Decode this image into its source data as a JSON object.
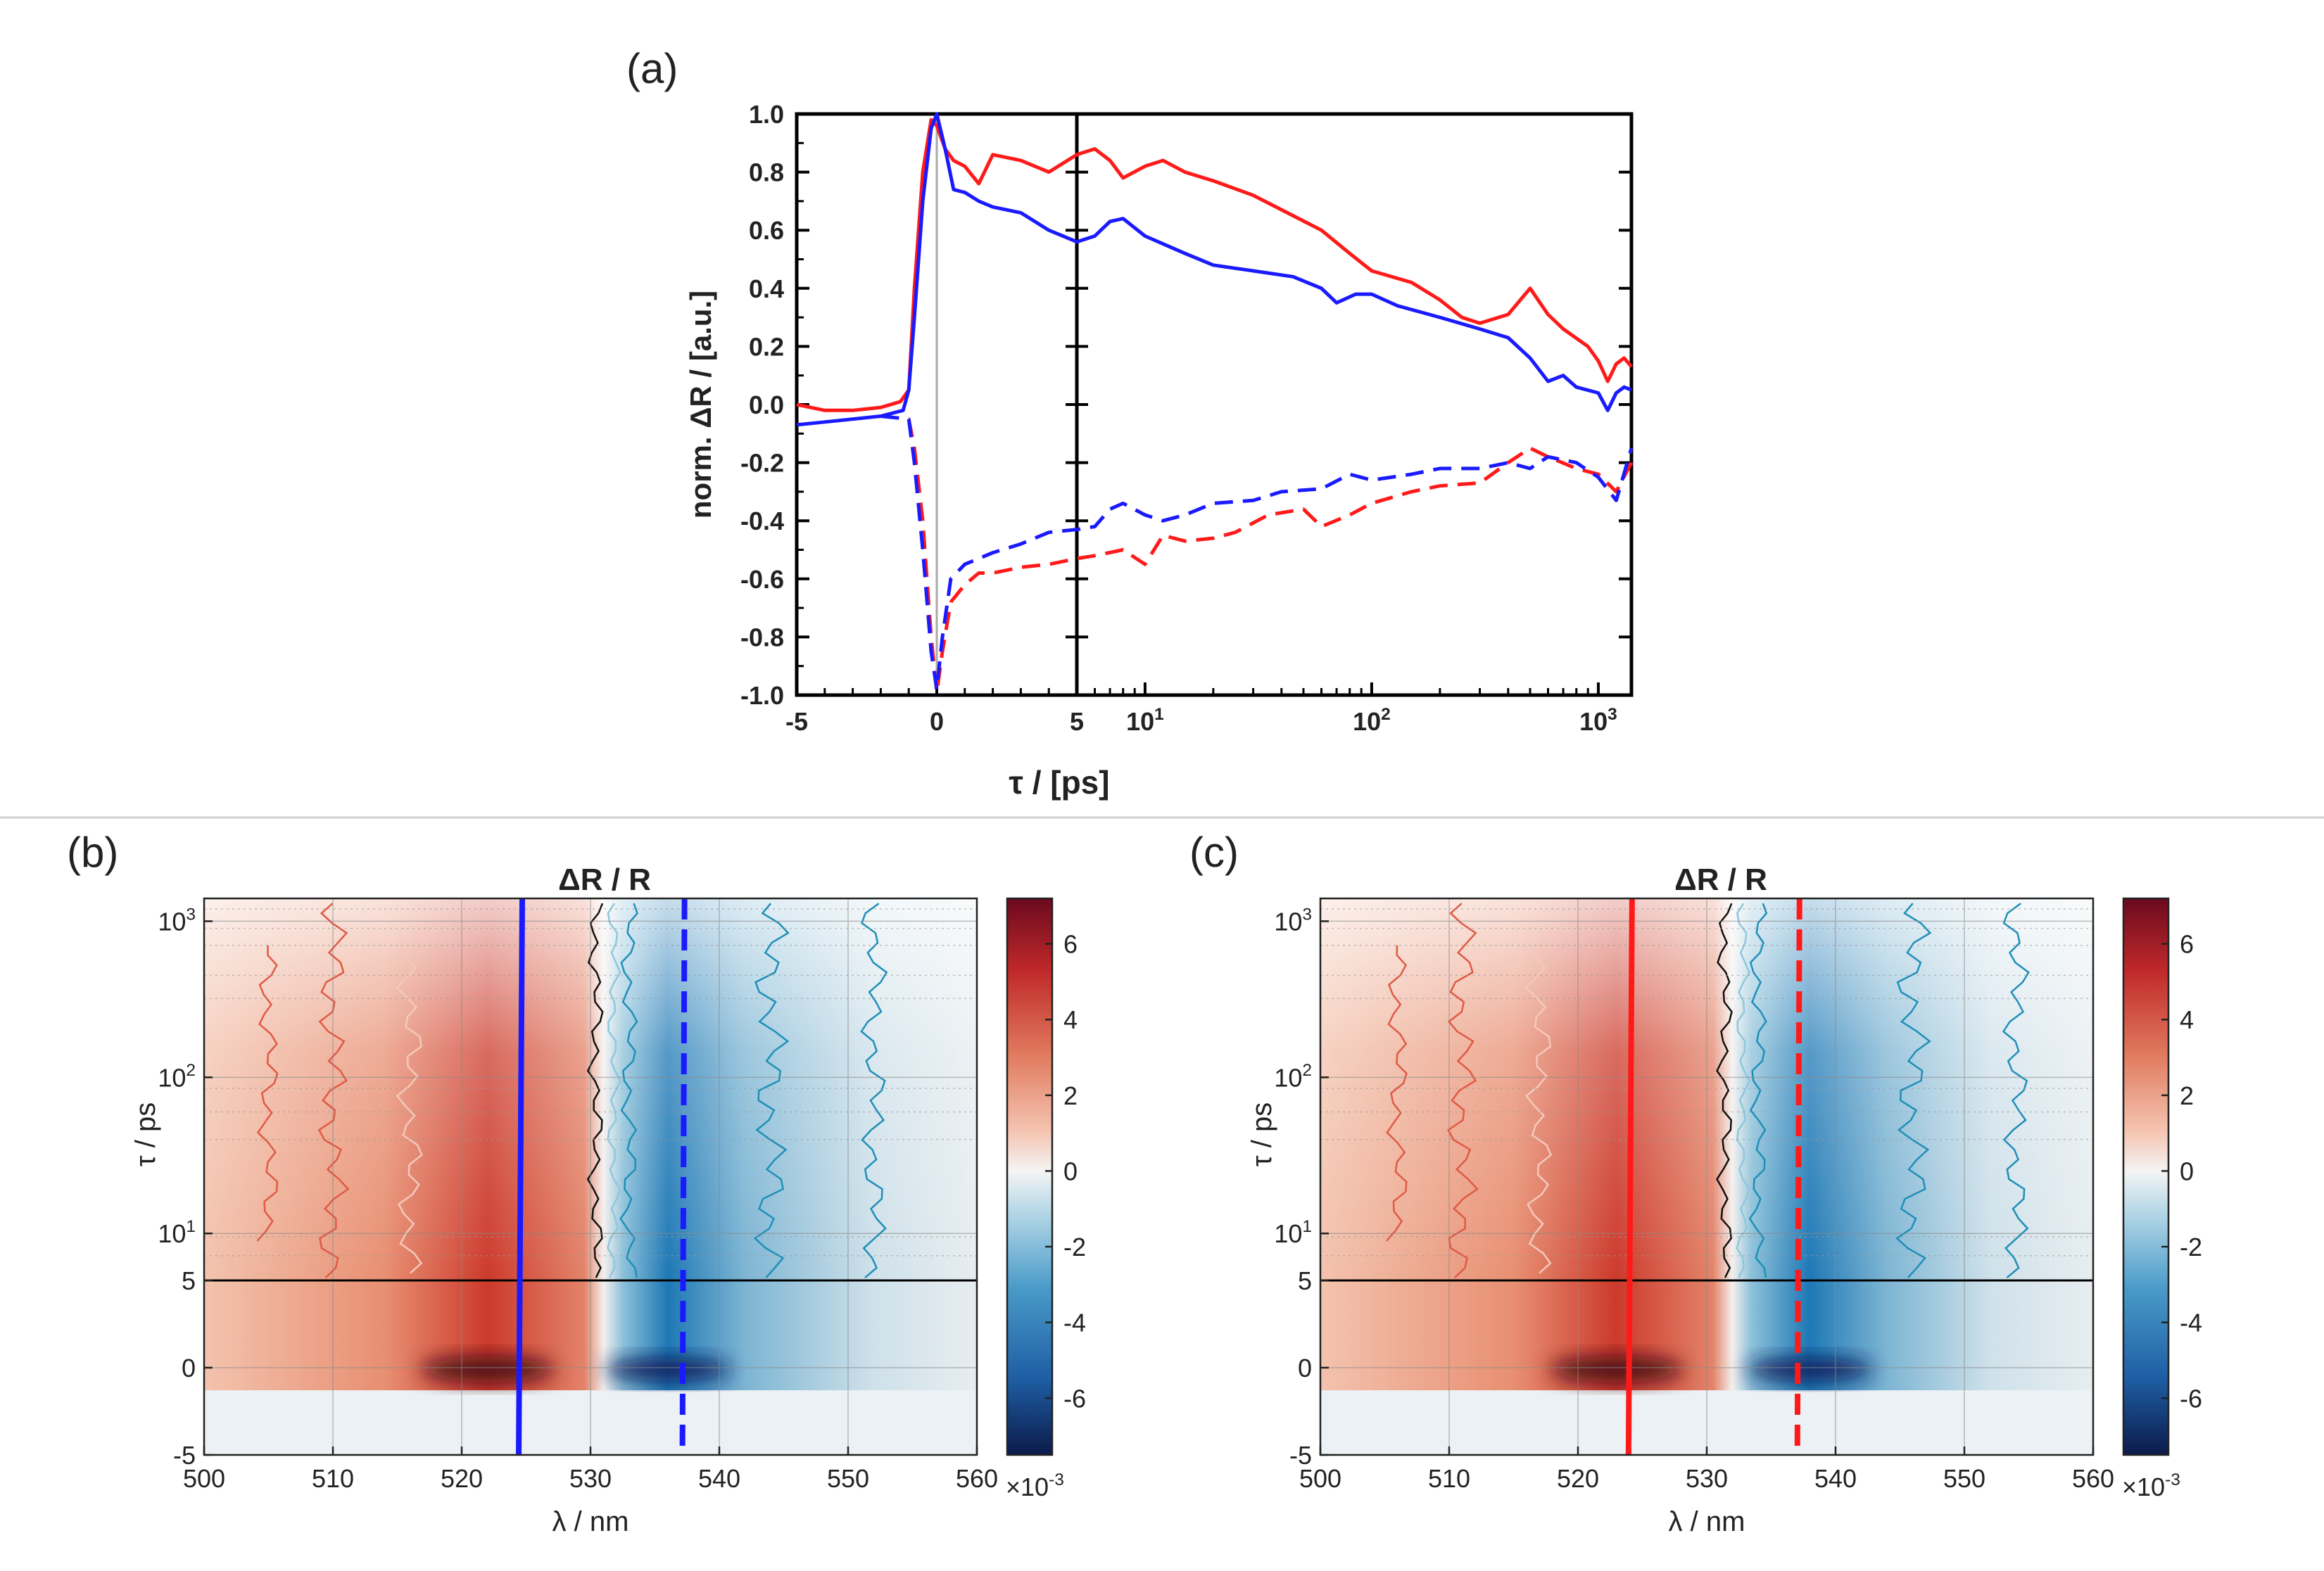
{
  "panel_labels": {
    "a": "(a)",
    "b": "(b)",
    "c": "(c)"
  },
  "colors": {
    "red": "#ff1a1a",
    "blue": "#1a1aff",
    "pos": "#b2182b",
    "neg": "#2166ac",
    "zero": "#f2f2f2"
  },
  "chart_data": [
    {
      "type": "line",
      "panel": "(a)",
      "ylabel": "norm. ΔR / [a.u.]",
      "xlabel": "τ / [ps]",
      "ylim": [
        -1.0,
        1.0
      ],
      "yticks": [
        "1.0",
        "0.8",
        "0.6",
        "0.4",
        "0.2",
        "0.0",
        "-0.2",
        "-0.4",
        "-0.6",
        "-0.8",
        "-1.0"
      ],
      "x_linear_range": [
        -5,
        5
      ],
      "x_log_range": [
        5,
        1400
      ],
      "xticks_linear": [
        "-5",
        "0",
        "5"
      ],
      "xticks_log": [
        {
          "base": "10",
          "exp": "1"
        },
        {
          "base": "10",
          "exp": "2"
        },
        {
          "base": "10",
          "exp": "3"
        }
      ],
      "series": [
        {
          "name": "red solid",
          "color": "red",
          "dash": false,
          "points": [
            [
              -5,
              0.0
            ],
            [
              -4,
              -0.02
            ],
            [
              -3,
              -0.02
            ],
            [
              -2,
              -0.01
            ],
            [
              -1.3,
              0.01
            ],
            [
              -1,
              0.05
            ],
            [
              -0.8,
              0.4
            ],
            [
              -0.5,
              0.8
            ],
            [
              -0.2,
              0.98
            ],
            [
              0,
              0.96
            ],
            [
              0.3,
              0.88
            ],
            [
              0.6,
              0.84
            ],
            [
              1,
              0.82
            ],
            [
              1.5,
              0.76
            ],
            [
              2,
              0.86
            ],
            [
              3,
              0.84
            ],
            [
              4,
              0.8
            ],
            [
              5,
              0.86
            ],
            [
              6,
              0.88
            ],
            [
              7,
              0.84
            ],
            [
              8,
              0.78
            ],
            [
              10,
              0.82
            ],
            [
              12,
              0.84
            ],
            [
              15,
              0.8
            ],
            [
              20,
              0.77
            ],
            [
              30,
              0.72
            ],
            [
              45,
              0.65
            ],
            [
              60,
              0.6
            ],
            [
              80,
              0.52
            ],
            [
              100,
              0.46
            ],
            [
              150,
              0.42
            ],
            [
              200,
              0.36
            ],
            [
              250,
              0.3
            ],
            [
              300,
              0.28
            ],
            [
              400,
              0.31
            ],
            [
              500,
              0.4
            ],
            [
              600,
              0.31
            ],
            [
              700,
              0.26
            ],
            [
              900,
              0.2
            ],
            [
              1000,
              0.15
            ],
            [
              1100,
              0.08
            ],
            [
              1200,
              0.14
            ],
            [
              1300,
              0.16
            ],
            [
              1400,
              0.13
            ]
          ]
        },
        {
          "name": "blue solid",
          "color": "blue",
          "dash": false,
          "points": [
            [
              -5,
              -0.07
            ],
            [
              -4,
              -0.06
            ],
            [
              -3,
              -0.05
            ],
            [
              -2,
              -0.04
            ],
            [
              -1.2,
              -0.02
            ],
            [
              -1,
              0.05
            ],
            [
              -0.8,
              0.3
            ],
            [
              -0.5,
              0.7
            ],
            [
              -0.2,
              0.95
            ],
            [
              0,
              1.0
            ],
            [
              0.3,
              0.88
            ],
            [
              0.6,
              0.74
            ],
            [
              1,
              0.73
            ],
            [
              1.5,
              0.7
            ],
            [
              2,
              0.68
            ],
            [
              3,
              0.66
            ],
            [
              4,
              0.6
            ],
            [
              5,
              0.56
            ],
            [
              6,
              0.58
            ],
            [
              7,
              0.63
            ],
            [
              8,
              0.64
            ],
            [
              10,
              0.58
            ],
            [
              15,
              0.52
            ],
            [
              20,
              0.48
            ],
            [
              30,
              0.46
            ],
            [
              45,
              0.44
            ],
            [
              60,
              0.4
            ],
            [
              70,
              0.35
            ],
            [
              85,
              0.38
            ],
            [
              100,
              0.38
            ],
            [
              130,
              0.34
            ],
            [
              200,
              0.3
            ],
            [
              300,
              0.26
            ],
            [
              400,
              0.23
            ],
            [
              500,
              0.16
            ],
            [
              600,
              0.08
            ],
            [
              700,
              0.1
            ],
            [
              800,
              0.06
            ],
            [
              1000,
              0.04
            ],
            [
              1100,
              -0.02
            ],
            [
              1200,
              0.04
            ],
            [
              1300,
              0.06
            ],
            [
              1400,
              0.05
            ]
          ]
        },
        {
          "name": "red dashed",
          "color": "red",
          "dash": true,
          "points": [
            [
              -1,
              -0.05
            ],
            [
              -0.8,
              -0.15
            ],
            [
              -0.5,
              -0.4
            ],
            [
              -0.2,
              -0.8
            ],
            [
              0,
              -0.99
            ],
            [
              0.2,
              -0.85
            ],
            [
              0.5,
              -0.68
            ],
            [
              1,
              -0.62
            ],
            [
              1.5,
              -0.58
            ],
            [
              2,
              -0.58
            ],
            [
              3,
              -0.56
            ],
            [
              4,
              -0.55
            ],
            [
              5,
              -0.53
            ],
            [
              6,
              -0.52
            ],
            [
              8,
              -0.5
            ],
            [
              10,
              -0.55
            ],
            [
              12,
              -0.45
            ],
            [
              15,
              -0.47
            ],
            [
              20,
              -0.46
            ],
            [
              25,
              -0.44
            ],
            [
              35,
              -0.38
            ],
            [
              50,
              -0.36
            ],
            [
              60,
              -0.42
            ],
            [
              80,
              -0.38
            ],
            [
              100,
              -0.34
            ],
            [
              150,
              -0.3
            ],
            [
              200,
              -0.28
            ],
            [
              300,
              -0.27
            ],
            [
              400,
              -0.2
            ],
            [
              500,
              -0.15
            ],
            [
              600,
              -0.18
            ],
            [
              800,
              -0.22
            ],
            [
              1000,
              -0.24
            ],
            [
              1200,
              -0.3
            ],
            [
              1400,
              -0.2
            ]
          ]
        },
        {
          "name": "blue dashed",
          "color": "blue",
          "dash": true,
          "points": [
            [
              -2,
              -0.04
            ],
            [
              -1,
              -0.05
            ],
            [
              -0.8,
              -0.2
            ],
            [
              -0.5,
              -0.5
            ],
            [
              -0.2,
              -0.85
            ],
            [
              0,
              -0.98
            ],
            [
              0.2,
              -0.8
            ],
            [
              0.5,
              -0.6
            ],
            [
              1,
              -0.55
            ],
            [
              2,
              -0.51
            ],
            [
              3,
              -0.48
            ],
            [
              4,
              -0.44
            ],
            [
              5,
              -0.43
            ],
            [
              6,
              -0.42
            ],
            [
              7,
              -0.36
            ],
            [
              8,
              -0.34
            ],
            [
              10,
              -0.38
            ],
            [
              12,
              -0.4
            ],
            [
              15,
              -0.38
            ],
            [
              20,
              -0.34
            ],
            [
              30,
              -0.33
            ],
            [
              40,
              -0.3
            ],
            [
              60,
              -0.29
            ],
            [
              80,
              -0.24
            ],
            [
              100,
              -0.26
            ],
            [
              150,
              -0.24
            ],
            [
              200,
              -0.22
            ],
            [
              300,
              -0.22
            ],
            [
              400,
              -0.2
            ],
            [
              500,
              -0.22
            ],
            [
              600,
              -0.18
            ],
            [
              800,
              -0.2
            ],
            [
              1000,
              -0.25
            ],
            [
              1200,
              -0.33
            ],
            [
              1400,
              -0.15
            ]
          ]
        }
      ]
    },
    {
      "type": "heatmap",
      "panel": "(b)",
      "title": "ΔR / R",
      "xlabel": "λ / nm",
      "ylabel": "τ / ps",
      "xlim": [
        500,
        560
      ],
      "xticks": [
        "500",
        "510",
        "520",
        "530",
        "540",
        "550",
        "560"
      ],
      "ylim_linear": [
        -5,
        5
      ],
      "ylim_log": [
        5,
        1400
      ],
      "yticks_linear": [
        "5",
        "0",
        "-5"
      ],
      "yticks_log": [
        {
          "base": "10",
          "exp": "3"
        },
        {
          "base": "10",
          "exp": "2"
        },
        {
          "base": "10",
          "exp": "1"
        }
      ],
      "colorbar_ticks": [
        "6",
        "4",
        "2",
        "0",
        "-2",
        "-4",
        "-6"
      ],
      "colorbar_range": [
        -7.5,
        7.2
      ],
      "colorbar_scale": "×10",
      "colorbar_scale_exp": "-3",
      "zero_crossing_nm": 531,
      "positive_peak_nm": 522,
      "negative_peak_nm": 536,
      "marker_solid_nm": 524.7,
      "marker_dashed_nm": 537.3,
      "marker_color": "blue"
    },
    {
      "type": "heatmap",
      "panel": "(c)",
      "title": "ΔR / R",
      "xlabel": "λ / nm",
      "ylabel": "τ / ps",
      "xlim": [
        500,
        560
      ],
      "xticks": [
        "500",
        "510",
        "520",
        "530",
        "540",
        "550",
        "560"
      ],
      "ylim_linear": [
        -5,
        5
      ],
      "ylim_log": [
        5,
        1400
      ],
      "yticks_linear": [
        "5",
        "0",
        "-5"
      ],
      "yticks_log": [
        {
          "base": "10",
          "exp": "3"
        },
        {
          "base": "10",
          "exp": "2"
        },
        {
          "base": "10",
          "exp": "1"
        }
      ],
      "colorbar_ticks": [
        "6",
        "4",
        "2",
        "0",
        "-2",
        "-4",
        "-6"
      ],
      "colorbar_range": [
        -7.5,
        7.2
      ],
      "colorbar_scale": "×10",
      "colorbar_scale_exp": "-3",
      "zero_crossing_nm": 532,
      "positive_peak_nm": 523,
      "negative_peak_nm": 538,
      "marker_solid_nm": 524.2,
      "marker_dashed_nm": 537.2,
      "marker_color": "red"
    }
  ]
}
